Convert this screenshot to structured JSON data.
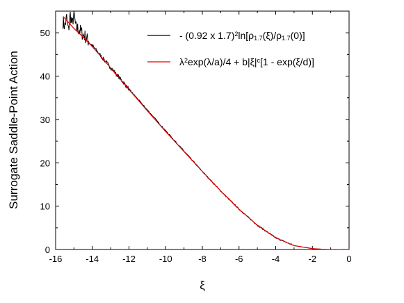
{
  "chart_data": {
    "type": "line",
    "xlabel": "ξ",
    "ylabel": "Surrogate Saddle-Point Action",
    "xlim": [
      -16,
      0
    ],
    "ylim": [
      0,
      55
    ],
    "x_ticks": [
      -16,
      -14,
      -12,
      -10,
      -8,
      -6,
      -4,
      -2,
      0
    ],
    "x_tick_labels": [
      "-16",
      "-14",
      "-12",
      "-10",
      "-8",
      "-6",
      "-4",
      "-2",
      "0"
    ],
    "y_ticks": [
      0,
      10,
      20,
      30,
      40,
      50
    ],
    "y_tick_labels": [
      "0",
      "10",
      "20",
      "30",
      "40",
      "50"
    ],
    "grid": false,
    "legend_position": "top-right",
    "legend": [
      {
        "series": 0,
        "parts": [
          {
            "t": "- (0.92 x 1.7)"
          },
          {
            "t": "2",
            "s": "sup"
          },
          {
            "t": "ln[ρ"
          },
          {
            "t": "1.7",
            "s": "sub"
          },
          {
            "t": "(ξ)/ρ"
          },
          {
            "t": "1.7",
            "s": "sub"
          },
          {
            "t": "(0)]"
          }
        ]
      },
      {
        "series": 1,
        "parts": [
          {
            "t": "λ"
          },
          {
            "t": "2",
            "s": "sup"
          },
          {
            "t": "exp(λ/a)/4 + b|ξ|"
          },
          {
            "t": "c",
            "s": "sup"
          },
          {
            "t": "[1 - exp(ξ/d)]"
          }
        ]
      }
    ],
    "series": [
      {
        "color": "#000000",
        "noisy": true,
        "x": [
          -15.6,
          -15.5,
          -15.4,
          -15.3,
          -15.2,
          -15.1,
          -15.0,
          -14.9,
          -14.8,
          -14.7,
          -14.6,
          -14.5,
          -14.4,
          -14.3,
          -14.2,
          -14.1,
          -14.0,
          -13.8,
          -13.6,
          -13.4,
          -13.2,
          -13.0,
          -12.5,
          -12.0,
          -11.0,
          -10.0,
          -9.0,
          -8.0,
          -7.0,
          -6.0,
          -5.0,
          -4.0,
          -3.0,
          -2.0,
          -1.5,
          -1.0,
          -0.5,
          -0.2,
          0.0
        ],
        "y": [
          52.5,
          51.5,
          53.5,
          50.5,
          54.2,
          51.8,
          54.5,
          51.2,
          51.0,
          50.6,
          50.2,
          49.5,
          49.2,
          48.6,
          48.0,
          47.4,
          47.0,
          46.0,
          45.0,
          44.0,
          43.0,
          42.0,
          39.5,
          37.0,
          32.2,
          27.4,
          22.7,
          18.0,
          13.5,
          9.3,
          5.6,
          2.7,
          0.9,
          0.2,
          0.07,
          0.0,
          0.0,
          0.0,
          0.0
        ]
      },
      {
        "color": "#e00000",
        "noisy": false,
        "x": [
          -15.6,
          -15.0,
          -14.5,
          -14.0,
          -13.5,
          -13.0,
          -12.5,
          -12.0,
          -11.0,
          -10.0,
          -9.0,
          -8.0,
          -7.0,
          -6.0,
          -5.0,
          -4.0,
          -3.0,
          -2.0,
          -1.5,
          -1.0,
          -0.5,
          -0.2,
          0.0
        ],
        "y": [
          53.8,
          51.0,
          49.0,
          46.8,
          44.4,
          41.9,
          39.4,
          36.9,
          32.0,
          27.2,
          22.6,
          18.0,
          13.5,
          9.3,
          5.6,
          2.7,
          0.9,
          0.2,
          0.07,
          0.0,
          0.0,
          0.0,
          0.0
        ]
      }
    ]
  }
}
